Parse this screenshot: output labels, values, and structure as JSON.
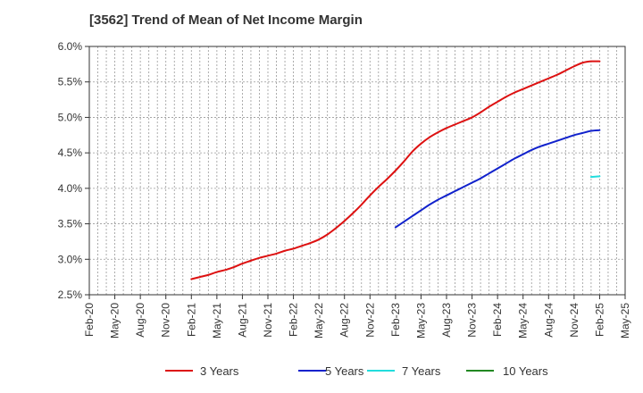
{
  "chart_data": {
    "type": "line",
    "title": "[3562]  Trend of Mean of Net Income Margin",
    "xlabel": "",
    "ylabel": "",
    "x_ticks": [
      "Feb-20",
      "May-20",
      "Aug-20",
      "Nov-20",
      "Feb-21",
      "May-21",
      "Aug-21",
      "Nov-21",
      "Feb-22",
      "May-22",
      "Aug-22",
      "Nov-22",
      "Feb-23",
      "May-23",
      "Aug-23",
      "Nov-23",
      "Feb-24",
      "May-24",
      "Aug-24",
      "Nov-24",
      "Feb-25",
      "May-25"
    ],
    "y_ticks": [
      "2.5%",
      "3.0%",
      "3.5%",
      "4.0%",
      "4.5%",
      "5.0%",
      "5.5%",
      "6.0%"
    ],
    "ylim": [
      2.5,
      6.0
    ],
    "y_unit": "%",
    "grid": true,
    "grid_style": "dotted",
    "legend_position": "bottom",
    "series": [
      {
        "name": "3 Years",
        "color": "#dd1111",
        "x": [
          "Feb-21",
          "Mar-21",
          "Apr-21",
          "May-21",
          "Jun-21",
          "Jul-21",
          "Aug-21",
          "Sep-21",
          "Oct-21",
          "Nov-21",
          "Dec-21",
          "Jan-22",
          "Feb-22",
          "Mar-22",
          "Apr-22",
          "May-22",
          "Jun-22",
          "Jul-22",
          "Aug-22",
          "Sep-22",
          "Oct-22",
          "Nov-22",
          "Dec-22",
          "Jan-23",
          "Feb-23",
          "Mar-23",
          "Apr-23",
          "May-23",
          "Jun-23",
          "Jul-23",
          "Aug-23",
          "Sep-23",
          "Oct-23",
          "Nov-23",
          "Dec-23",
          "Jan-24",
          "Feb-24",
          "Mar-24",
          "Apr-24",
          "May-24",
          "Jun-24",
          "Jul-24",
          "Aug-24",
          "Sep-24",
          "Oct-24",
          "Nov-24",
          "Dec-24",
          "Jan-25",
          "Feb-25"
        ],
        "values": [
          2.72,
          2.75,
          2.78,
          2.82,
          2.85,
          2.89,
          2.94,
          2.98,
          3.02,
          3.05,
          3.08,
          3.12,
          3.15,
          3.19,
          3.23,
          3.28,
          3.35,
          3.44,
          3.54,
          3.65,
          3.77,
          3.9,
          4.02,
          4.13,
          4.25,
          4.38,
          4.52,
          4.63,
          4.72,
          4.79,
          4.85,
          4.9,
          4.95,
          5.0,
          5.07,
          5.15,
          5.22,
          5.29,
          5.35,
          5.4,
          5.45,
          5.5,
          5.55,
          5.6,
          5.66,
          5.72,
          5.77,
          5.79,
          5.79
        ]
      },
      {
        "name": "5 Years",
        "color": "#1122cc",
        "x": [
          "Feb-23",
          "Mar-23",
          "Apr-23",
          "May-23",
          "Jun-23",
          "Jul-23",
          "Aug-23",
          "Sep-23",
          "Oct-23",
          "Nov-23",
          "Dec-23",
          "Jan-24",
          "Feb-24",
          "Mar-24",
          "Apr-24",
          "May-24",
          "Jun-24",
          "Jul-24",
          "Aug-24",
          "Sep-24",
          "Oct-24",
          "Nov-24",
          "Dec-24",
          "Jan-25",
          "Feb-25"
        ],
        "values": [
          3.45,
          3.53,
          3.61,
          3.69,
          3.77,
          3.84,
          3.9,
          3.96,
          4.02,
          4.08,
          4.14,
          4.21,
          4.28,
          4.35,
          4.42,
          4.48,
          4.54,
          4.59,
          4.63,
          4.67,
          4.71,
          4.75,
          4.78,
          4.81,
          4.82
        ]
      },
      {
        "name": "7 Years",
        "color": "#22dddd",
        "x": [
          "Jan-25",
          "Feb-25"
        ],
        "values": [
          4.16,
          4.17
        ]
      },
      {
        "name": "10 Years",
        "color": "#228822",
        "x": [],
        "values": []
      }
    ]
  }
}
